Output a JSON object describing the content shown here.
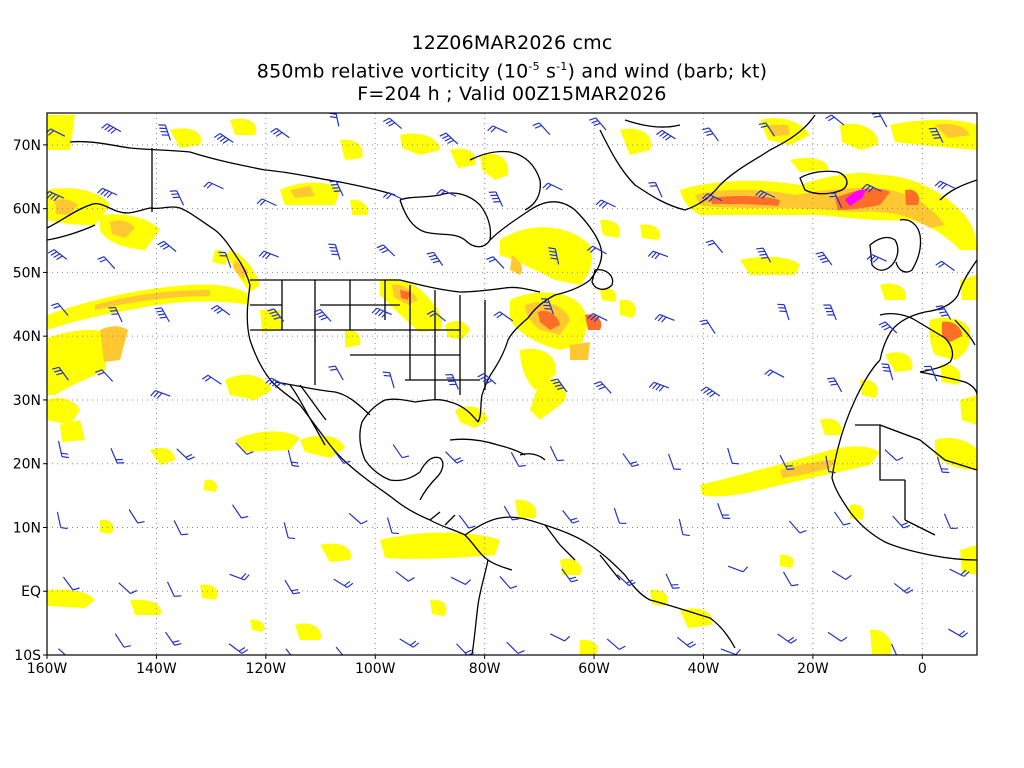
{
  "title": {
    "line1": "12Z06MAR2026 cmc",
    "line2_prefix": "850mb relative vorticity (10",
    "line2_exp1": "-5",
    "line2_mid": " s",
    "line2_exp2": "-1",
    "line2_suffix": ") and wind (barb; kt)",
    "line3": "F=204 h ; Valid 00Z15MAR2026"
  },
  "axes": {
    "lon_labels": [
      "160W",
      "140W",
      "120W",
      "100W",
      "80W",
      "60W",
      "40W",
      "20W",
      "0"
    ],
    "lon_values": [
      -160,
      -140,
      -120,
      -100,
      -80,
      -60,
      -40,
      -20,
      0
    ],
    "lat_labels": [
      "70N",
      "60N",
      "50N",
      "40N",
      "30N",
      "20N",
      "10N",
      "EQ",
      "10S"
    ],
    "lat_values": [
      70,
      60,
      50,
      40,
      30,
      20,
      10,
      0,
      -10
    ],
    "lon_range": [
      -160,
      10
    ],
    "lat_range": [
      -10,
      75
    ]
  },
  "colors": {
    "contour_low": "#ffff00",
    "contour_mid": "#ffc832",
    "contour_high": "#ff6e28",
    "contour_max": "#ff00ff",
    "barb": "#2233cc",
    "coast": "#000000",
    "grid": "#888888"
  }
}
